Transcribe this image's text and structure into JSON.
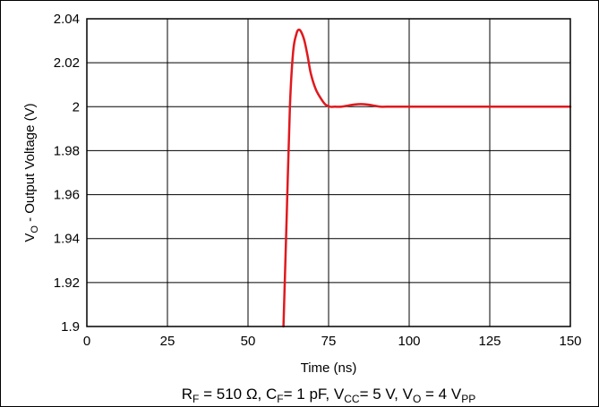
{
  "chart_data": {
    "type": "line",
    "xlabel": "Time (ns)",
    "ylabel": {
      "prefix": "V",
      "sub": "O",
      "suffix": " - Output Voltage (V)"
    },
    "xlim": [
      0,
      150
    ],
    "ylim": [
      1.9,
      2.04
    ],
    "xticks": [
      0,
      25,
      50,
      75,
      100,
      125,
      150
    ],
    "xtick_labels": [
      "0",
      "25",
      "50",
      "75",
      "100",
      "125",
      "150"
    ],
    "yticks": [
      1.9,
      1.92,
      1.94,
      1.96,
      1.98,
      2.0,
      2.02,
      2.04
    ],
    "ytick_labels": [
      "1.9",
      "1.92",
      "1.94",
      "1.96",
      "1.98",
      "2",
      "2.02",
      "2.04"
    ],
    "grid": true,
    "series": [
      {
        "color": "#e0191e",
        "x": [
          61,
          62,
          63,
          64,
          65,
          65.7,
          66.5,
          67.5,
          68.5,
          69.5,
          71,
          72.5,
          74,
          75.5,
          77,
          79,
          81,
          83,
          85,
          87,
          89,
          91,
          93,
          100,
          110,
          125,
          150
        ],
        "y": [
          1.9,
          1.95,
          2.0,
          2.025,
          2.033,
          2.035,
          2.034,
          2.03,
          2.023,
          2.015,
          2.008,
          2.004,
          2.001,
          2.0,
          2.0,
          2.0,
          2.0005,
          2.001,
          2.0012,
          2.001,
          2.0005,
          2.0,
          2.0,
          2.0,
          2.0,
          2.0,
          2.0
        ]
      }
    ],
    "caption": {
      "text": [
        {
          "t": "R"
        },
        {
          "t": "F",
          "sub": true
        },
        {
          "t": " = 510 Ω, C"
        },
        {
          "t": "F",
          "sub": true
        },
        {
          "t": "= 1 pF, V"
        },
        {
          "t": "CC",
          "sub": true
        },
        {
          "t": "= 5 V, V"
        },
        {
          "t": "O",
          "sub": true
        },
        {
          "t": " = 4 V"
        },
        {
          "t": "PP",
          "sub": true
        }
      ]
    }
  }
}
